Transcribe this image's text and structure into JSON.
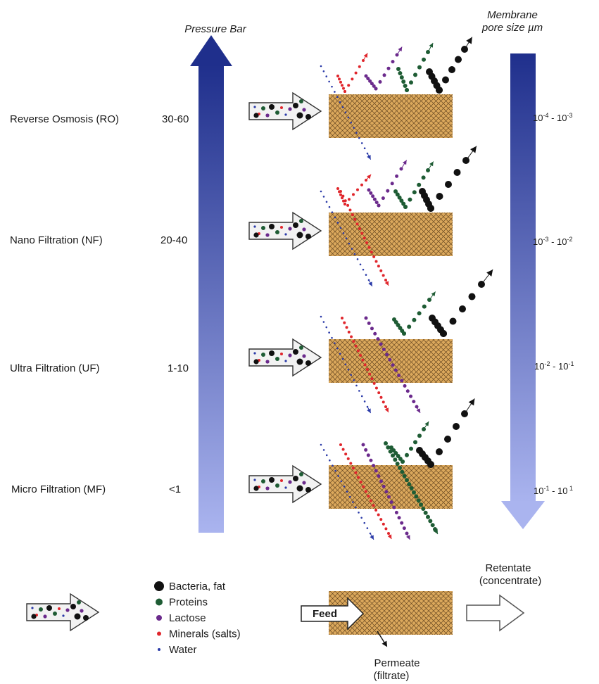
{
  "pressure_axis": {
    "title": "Pressure Bar"
  },
  "pore_axis": {
    "title_line1": "Membrane",
    "title_line2": "pore size µm"
  },
  "processes": [
    {
      "name": "Reverse Osmosis (RO)",
      "pressure": "30-60",
      "pore_base1": "10",
      "pore_exp1": "-4",
      "pore_sep": " - ",
      "pore_base2": "10",
      "pore_exp2": "-3",
      "passes": [
        "water"
      ],
      "retained": [
        "minerals",
        "lactose",
        "proteins",
        "bacteria"
      ]
    },
    {
      "name": "Nano Filtration (NF)",
      "pressure": "20-40",
      "pore_base1": "10",
      "pore_exp1": "-3",
      "pore_sep": " - ",
      "pore_base2": "10",
      "pore_exp2": "-2",
      "passes": [
        "water",
        "minerals"
      ],
      "retained": [
        "minerals",
        "lactose",
        "proteins",
        "bacteria"
      ]
    },
    {
      "name": "Ultra Filtration (UF)",
      "pressure": "1-10",
      "pore_base1": "10",
      "pore_exp1": "-2",
      "pore_sep": " - ",
      "pore_base2": "10",
      "pore_exp2": "-1",
      "passes": [
        "water",
        "minerals",
        "lactose"
      ],
      "retained": [
        "proteins",
        "bacteria"
      ]
    },
    {
      "name": "Micro Filtration (MF)",
      "pressure": "<1",
      "pore_base1": "10",
      "pore_exp1": "-1",
      "pore_sep": " - ",
      "pore_base2": "10",
      "pore_exp2": " 1",
      "passes": [
        "water",
        "minerals",
        "lactose",
        "proteins"
      ],
      "retained": [
        "proteins",
        "bacteria"
      ]
    }
  ],
  "legend": [
    {
      "key": "bacteria",
      "label": "Bacteria, fat"
    },
    {
      "key": "proteins",
      "label": "Proteins"
    },
    {
      "key": "lactose",
      "label": "Lactose"
    },
    {
      "key": "minerals",
      "label": "Minerals (salts)"
    },
    {
      "key": "water",
      "label": "Water"
    }
  ],
  "flow_key": {
    "feed": "Feed",
    "retentate_line1": "Retentate",
    "retentate_line2": "(concentrate)",
    "permeate_line1": "Permeate",
    "permeate_line2": "(filtrate)"
  },
  "colors": {
    "pressure_dark": "#1f2f8c",
    "pressure_light": "#a9b3ee",
    "membrane_fill": "#dba85c",
    "membrane_hatch": "#6a4a22",
    "bacteria": "#111111",
    "proteins": "#1e5c34",
    "lactose": "#6b2a8c",
    "minerals": "#e0262c",
    "water": "#2a3aa8"
  }
}
